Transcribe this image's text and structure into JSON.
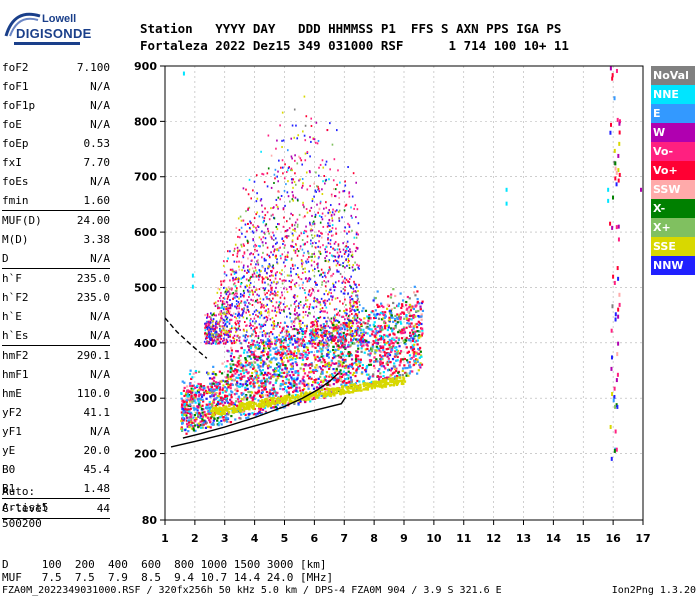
{
  "logo": {
    "line1": "Lowell",
    "line2": "DIGISONDE"
  },
  "header": {
    "row1": "Station   YYYY DAY   DDD HHMMSS P1  FFS S AXN PPS IGA PS",
    "row2": "Fortaleza 2022 Dez15 349 031000 RSF      1 714 100 10+ 11"
  },
  "params": [
    {
      "k": "foF2",
      "v": "7.100"
    },
    {
      "k": "foF1",
      "v": "N/A"
    },
    {
      "k": "foF1p",
      "v": "N/A"
    },
    {
      "k": "foE",
      "v": "N/A"
    },
    {
      "k": "foEp",
      "v": "0.53"
    },
    {
      "k": "fxI",
      "v": "7.70"
    },
    {
      "k": "foEs",
      "v": "N/A"
    },
    {
      "k": "fmin",
      "v": "1.60",
      "sep": true
    },
    {
      "k": "MUF(D)",
      "v": "24.00"
    },
    {
      "k": "M(D)",
      "v": "3.38"
    },
    {
      "k": "D",
      "v": "N/A",
      "sep": true
    },
    {
      "k": "h`F",
      "v": "235.0"
    },
    {
      "k": "h`F2",
      "v": "235.0"
    },
    {
      "k": "h`E",
      "v": "N/A"
    },
    {
      "k": "h`Es",
      "v": "N/A",
      "sep": true
    },
    {
      "k": "hmF2",
      "v": "290.1"
    },
    {
      "k": "hmF1",
      "v": "N/A"
    },
    {
      "k": "hmE",
      "v": "110.0"
    },
    {
      "k": "yF2",
      "v": "41.1"
    },
    {
      "k": "yF1",
      "v": "N/A"
    },
    {
      "k": "yE",
      "v": "20.0"
    },
    {
      "k": "B0",
      "v": "45.4"
    },
    {
      "k": "B1",
      "v": "1.48",
      "sep": true
    },
    {
      "k": "C-level",
      "v": "44",
      "sep": true
    }
  ],
  "auto": {
    "line1": "Auto:",
    "line2": "Artist5",
    "line3": "500200"
  },
  "legend": [
    {
      "label": "NoVal",
      "color": "#808080"
    },
    {
      "label": "NNE",
      "color": "#00e5ff"
    },
    {
      "label": "E",
      "color": "#3399ff"
    },
    {
      "label": "W",
      "color": "#b000b0"
    },
    {
      "label": "Vo-",
      "color": "#ff2080"
    },
    {
      "label": "Vo+",
      "color": "#ff0033"
    },
    {
      "label": "SSW",
      "color": "#ffaaaa"
    },
    {
      "label": "X-",
      "color": "#008000"
    },
    {
      "label": "X+",
      "color": "#80c060"
    },
    {
      "label": "SSE",
      "color": "#d8d800"
    },
    {
      "label": "NNW",
      "color": "#2020ff"
    }
  ],
  "footer": {
    "line1": "D     100  200  400  600  800 1000 1500 3000 [km]",
    "line2": "MUF   7.5  7.5  7.9  8.5  9.4 10.7 14.4 24.0 [MHz]",
    "line3": "FZA0M_2022349031000.RSF / 320fx256h 50 kHz 5.0 km / DPS-4 FZA0M 904 / 3.9 S 321.6 E",
    "line3r": "Ion2Png 1.3.20"
  },
  "chart_data": {
    "type": "scatter",
    "title": "",
    "xlabel": "",
    "ylabel": "",
    "xlim": [
      1,
      17
    ],
    "ylim": [
      80,
      900
    ],
    "x_ticks": [
      1,
      2,
      3,
      4,
      5,
      6,
      7,
      8,
      9,
      10,
      11,
      12,
      13,
      14,
      15,
      16,
      17
    ],
    "y_ticks": [
      80,
      200,
      300,
      400,
      500,
      600,
      700,
      800,
      900
    ],
    "grid": true,
    "curves": [
      {
        "name": "",
        "style": "solid",
        "points": [
          [
            1.2,
            212
          ],
          [
            2,
            222
          ],
          [
            3,
            235
          ],
          [
            4,
            250
          ],
          [
            5,
            265
          ],
          [
            6,
            278
          ],
          [
            6.9,
            290
          ],
          [
            7.05,
            302
          ]
        ]
      },
      {
        "name": "",
        "style": "solid",
        "points": [
          [
            1.6,
            228
          ],
          [
            2.2,
            236
          ],
          [
            3,
            248
          ],
          [
            4,
            265
          ],
          [
            5,
            285
          ],
          [
            5.6,
            300
          ],
          [
            6.1,
            315
          ],
          [
            6.5,
            330
          ],
          [
            6.8,
            345
          ]
        ]
      },
      {
        "name": "",
        "style": "dashed",
        "points": [
          [
            1,
            445
          ],
          [
            1.4,
            420
          ],
          [
            1.9,
            395
          ],
          [
            2.4,
            372
          ]
        ]
      }
    ],
    "clusters": [
      {
        "x": [
          1.5,
          9.6
        ],
        "y": [
          230,
          400
        ],
        "note": "F-trace dense echoes"
      },
      {
        "x": [
          2,
          7.5
        ],
        "y": [
          400,
          850
        ],
        "note": "spread echoes"
      },
      {
        "x": [
          15.8,
          16.2
        ],
        "y": [
          180,
          900
        ],
        "note": "high-frequency column"
      }
    ]
  }
}
